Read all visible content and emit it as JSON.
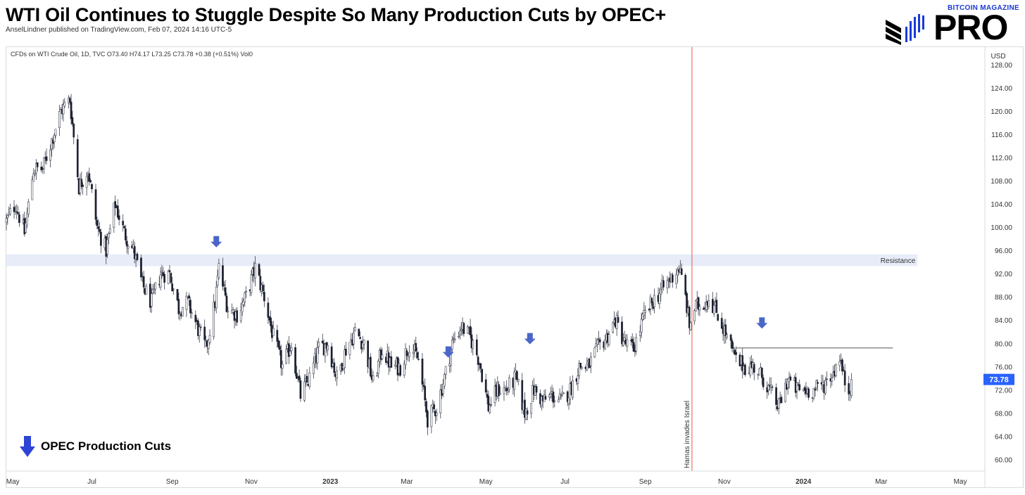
{
  "header": {
    "title": "WTI Oil Continues to Stuggle Despite So Many Production Cuts by OPEC+",
    "byline": "AnselLindner published on TradingView.com, Feb 07, 2024 14:16 UTC-5"
  },
  "logo": {
    "top_text": "BITCOIN MAGAZINE",
    "main_text": "PRO",
    "mark": "®"
  },
  "chart_data": {
    "type": "candlestick",
    "instrument_line": "CFDs on WTI Crude Oil, 1D, TVC  O73.40  H74.17  L73.25  C73.78  +0.38 (+0.51%)  Vol0",
    "currency": "USD",
    "ylim": [
      58,
      131
    ],
    "y_ticks": [
      60,
      64,
      68,
      72,
      76,
      80,
      84,
      88,
      92,
      96,
      100,
      104,
      108,
      112,
      116,
      120,
      124,
      128
    ],
    "y_tick_labels": [
      "60.00",
      "64.00",
      "68.00",
      "72.00",
      "76.00",
      "80.00",
      "84.00",
      "88.00",
      "92.00",
      "96.00",
      "100.00",
      "104.00",
      "108.00",
      "112.00",
      "116.00",
      "120.00",
      "124.00",
      "128.00"
    ],
    "x_range": [
      "2022-04-26",
      "2024-05-20"
    ],
    "x_ticks": [
      {
        "date": "2022-05-01",
        "label": "May",
        "bold": false
      },
      {
        "date": "2022-07-01",
        "label": "Jul",
        "bold": false
      },
      {
        "date": "2022-09-01",
        "label": "Sep",
        "bold": false
      },
      {
        "date": "2022-11-01",
        "label": "Nov",
        "bold": false
      },
      {
        "date": "2023-01-01",
        "label": "2023",
        "bold": true
      },
      {
        "date": "2023-03-01",
        "label": "Mar",
        "bold": false
      },
      {
        "date": "2023-05-01",
        "label": "May",
        "bold": false
      },
      {
        "date": "2023-07-01",
        "label": "Jul",
        "bold": false
      },
      {
        "date": "2023-09-01",
        "label": "Sep",
        "bold": false
      },
      {
        "date": "2023-11-01",
        "label": "Nov",
        "bold": false
      },
      {
        "date": "2024-01-01",
        "label": "2024",
        "bold": true
      },
      {
        "date": "2024-03-01",
        "label": "Mar",
        "bold": false
      },
      {
        "date": "2024-05-01",
        "label": "May",
        "bold": false
      }
    ],
    "last_price": 73.78,
    "last_price_label": "73.78",
    "path": [
      [
        "2022-04-26",
        101
      ],
      [
        "2022-05-03",
        104
      ],
      [
        "2022-05-10",
        99
      ],
      [
        "2022-05-17",
        110
      ],
      [
        "2022-05-24",
        110
      ],
      [
        "2022-05-31",
        115
      ],
      [
        "2022-06-07",
        120
      ],
      [
        "2022-06-14",
        122
      ],
      [
        "2022-06-21",
        107
      ],
      [
        "2022-06-28",
        110
      ],
      [
        "2022-07-05",
        100
      ],
      [
        "2022-07-12",
        96
      ],
      [
        "2022-07-19",
        104
      ],
      [
        "2022-07-26",
        99
      ],
      [
        "2022-08-02",
        96
      ],
      [
        "2022-08-09",
        90
      ],
      [
        "2022-08-16",
        87
      ],
      [
        "2022-08-23",
        92
      ],
      [
        "2022-08-30",
        92
      ],
      [
        "2022-09-06",
        86
      ],
      [
        "2022-09-13",
        87
      ],
      [
        "2022-09-20",
        83
      ],
      [
        "2022-09-27",
        79
      ],
      [
        "2022-10-04",
        87
      ],
      [
        "2022-10-07",
        93
      ],
      [
        "2022-10-14",
        86
      ],
      [
        "2022-10-21",
        85
      ],
      [
        "2022-10-28",
        88
      ],
      [
        "2022-11-04",
        93
      ],
      [
        "2022-11-11",
        88
      ],
      [
        "2022-11-18",
        81
      ],
      [
        "2022-11-25",
        76
      ],
      [
        "2022-12-02",
        80
      ],
      [
        "2022-12-09",
        71
      ],
      [
        "2022-12-16",
        74
      ],
      [
        "2022-12-23",
        79
      ],
      [
        "2022-12-30",
        80
      ],
      [
        "2023-01-06",
        74
      ],
      [
        "2023-01-13",
        79
      ],
      [
        "2023-01-20",
        82
      ],
      [
        "2023-01-27",
        80
      ],
      [
        "2023-02-03",
        73
      ],
      [
        "2023-02-10",
        79
      ],
      [
        "2023-02-17",
        76
      ],
      [
        "2023-02-24",
        76
      ],
      [
        "2023-03-03",
        80
      ],
      [
        "2023-03-10",
        77
      ],
      [
        "2023-03-17",
        67
      ],
      [
        "2023-03-24",
        69
      ],
      [
        "2023-03-31",
        75
      ],
      [
        "2023-04-05",
        80
      ],
      [
        "2023-04-12",
        83
      ],
      [
        "2023-04-19",
        81
      ],
      [
        "2023-04-26",
        77
      ],
      [
        "2023-05-03",
        69
      ],
      [
        "2023-05-10",
        72
      ],
      [
        "2023-05-17",
        72
      ],
      [
        "2023-05-24",
        74
      ],
      [
        "2023-05-31",
        68
      ],
      [
        "2023-06-07",
        72
      ],
      [
        "2023-06-14",
        70
      ],
      [
        "2023-06-21",
        71
      ],
      [
        "2023-06-28",
        70
      ],
      [
        "2023-07-05",
        72
      ],
      [
        "2023-07-12",
        76
      ],
      [
        "2023-07-19",
        76
      ],
      [
        "2023-07-26",
        79
      ],
      [
        "2023-08-02",
        81
      ],
      [
        "2023-08-09",
        84
      ],
      [
        "2023-08-16",
        80
      ],
      [
        "2023-08-23",
        79
      ],
      [
        "2023-08-30",
        84
      ],
      [
        "2023-09-06",
        87
      ],
      [
        "2023-09-13",
        89
      ],
      [
        "2023-09-20",
        91
      ],
      [
        "2023-09-27",
        93
      ],
      [
        "2023-10-02",
        88
      ],
      [
        "2023-10-05",
        83
      ],
      [
        "2023-10-09",
        86
      ],
      [
        "2023-10-16",
        87
      ],
      [
        "2023-10-20",
        88
      ],
      [
        "2023-10-27",
        85
      ],
      [
        "2023-11-03",
        81
      ],
      [
        "2023-11-10",
        77
      ],
      [
        "2023-11-17",
        76
      ],
      [
        "2023-11-24",
        76
      ],
      [
        "2023-12-01",
        74
      ],
      [
        "2023-12-08",
        71
      ],
      [
        "2023-12-13",
        69
      ],
      [
        "2023-12-20",
        74
      ],
      [
        "2023-12-27",
        72
      ],
      [
        "2024-01-03",
        72
      ],
      [
        "2024-01-10",
        72
      ],
      [
        "2024-01-17",
        73
      ],
      [
        "2024-01-24",
        75
      ],
      [
        "2024-01-29",
        78
      ],
      [
        "2024-02-01",
        74
      ],
      [
        "2024-02-05",
        72
      ],
      [
        "2024-02-07",
        73.78
      ]
    ],
    "annotations": {
      "resistance_zone": {
        "y0": 93.3,
        "y1": 95.3,
        "x_end": "2024-03-29",
        "label": "Resistance",
        "color": "#e7ecf8"
      },
      "resistance_line": {
        "y": 79.2,
        "x_start": "2023-11-10",
        "x_end": "2024-03-10"
      },
      "event_line": {
        "date": "2023-10-07",
        "label": "Hamas invades Israel",
        "color": "#e8554e"
      },
      "opec_arrows": [
        {
          "date": "2022-10-05",
          "y": 97.5
        },
        {
          "date": "2023-04-02",
          "y": 78.5
        },
        {
          "date": "2023-06-04",
          "y": 80.8
        },
        {
          "date": "2023-11-30",
          "y": 83.5
        }
      ],
      "arrow_color": "#4a66c9"
    },
    "legend": {
      "label": "OPEC Production Cuts",
      "placement": "bottom-left"
    }
  }
}
